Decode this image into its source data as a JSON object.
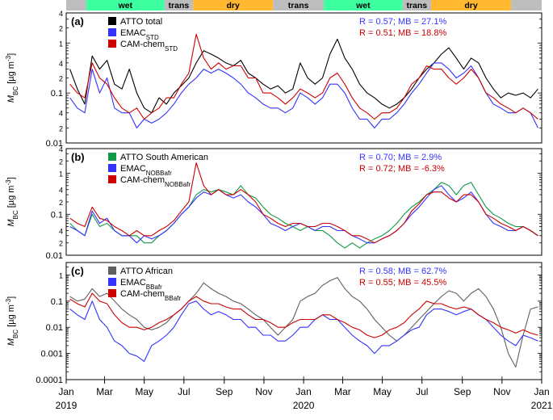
{
  "season_bar": [
    {
      "label": "",
      "color": "#bdbdbd",
      "start": "2019-01-01",
      "end": "2019-02-01"
    },
    {
      "label": "wet",
      "color": "#3dffa0",
      "start": "2019-02-01",
      "end": "2019-06-01"
    },
    {
      "label": "trans",
      "color": "#bdbdbd",
      "start": "2019-06-01",
      "end": "2019-07-15"
    },
    {
      "label": "dry",
      "color": "#ffb830",
      "start": "2019-07-15",
      "end": "2019-11-15"
    },
    {
      "label": "trans",
      "color": "#bdbdbd",
      "start": "2019-11-15",
      "end": "2020-02-01"
    },
    {
      "label": "wet",
      "color": "#3dffa0",
      "start": "2020-02-01",
      "end": "2020-06-01"
    },
    {
      "label": "trans",
      "color": "#bdbdbd",
      "start": "2020-06-01",
      "end": "2020-07-15"
    },
    {
      "label": "dry",
      "color": "#ffb830",
      "start": "2020-07-15",
      "end": "2020-11-15"
    },
    {
      "label": "",
      "color": "#bdbdbd",
      "start": "2020-11-15",
      "end": "2021-01-01"
    }
  ],
  "x_axis": {
    "ticks": [
      "Jan",
      "Mar",
      "May",
      "Jul",
      "Sep",
      "Nov",
      "Jan",
      "Mar",
      "May",
      "Jul",
      "Sep",
      "Nov",
      "Jan"
    ],
    "tick_dates": [
      "2019-01-01",
      "2019-03-01",
      "2019-05-01",
      "2019-07-01",
      "2019-09-01",
      "2019-11-01",
      "2020-01-01",
      "2020-03-01",
      "2020-05-01",
      "2020-07-01",
      "2020-09-01",
      "2020-11-01",
      "2021-01-01"
    ],
    "years": [
      {
        "label": "2019",
        "date": "2019-01-01"
      },
      {
        "label": "2020",
        "date": "2020-01-01"
      },
      {
        "label": "2021",
        "date": "2021-01-01"
      }
    ]
  },
  "chart_data": [
    {
      "type": "line",
      "panel": "(a)",
      "ylabel_main": "M",
      "ylabel_sub": "BC",
      "ylabel_unit": " [µg m",
      "ylabel_sup": "-3",
      "ylabel_close": "]",
      "ylim": [
        0.01,
        4
      ],
      "yscale": "log",
      "ytick_labels": [
        {
          "v": 0.01,
          "t": "0.01"
        },
        {
          "v": 0.02,
          "t": "2"
        },
        {
          "v": 0.04,
          "t": "4"
        },
        {
          "v": 0.1,
          "t": "0.1"
        },
        {
          "v": 0.2,
          "t": "2"
        },
        {
          "v": 0.4,
          "t": "4"
        },
        {
          "v": 1,
          "t": "1"
        },
        {
          "v": 2,
          "t": "2"
        },
        {
          "v": 4,
          "t": "4"
        }
      ],
      "legend": [
        {
          "name": "ATTO total",
          "sub": "",
          "color": "#000000"
        },
        {
          "name": "EMAC",
          "sub": "STD",
          "color": "#3333ff"
        },
        {
          "name": "CAM-chem",
          "sub": "STD",
          "color": "#cc0000"
        }
      ],
      "stats": [
        {
          "text": "R = 0.57;  MB = 27.1%",
          "color": "#3333ff"
        },
        {
          "text": "R = 0.51;  MB = 18.8%",
          "color": "#cc0000"
        }
      ],
      "series": [
        {
          "name": "ATTO total",
          "color": "#000000",
          "values": [
            0.3,
            0.12,
            0.06,
            0.55,
            0.3,
            0.45,
            0.15,
            0.12,
            0.3,
            0.1,
            0.05,
            0.04,
            0.08,
            0.06,
            0.1,
            0.14,
            0.2,
            0.4,
            0.7,
            0.6,
            0.5,
            0.4,
            0.35,
            0.45,
            0.25,
            0.2,
            0.15,
            0.12,
            0.14,
            0.1,
            0.12,
            0.4,
            0.2,
            0.15,
            0.2,
            0.6,
            1.2,
            0.5,
            0.3,
            0.15,
            0.1,
            0.08,
            0.06,
            0.05,
            0.06,
            0.08,
            0.12,
            0.2,
            0.3,
            0.4,
            0.6,
            0.8,
            0.5,
            0.3,
            0.5,
            0.4,
            0.2,
            0.12,
            0.08,
            0.1,
            0.09,
            0.1,
            0.08,
            0.12
          ]
        },
        {
          "name": "EMAC",
          "color": "#3333ff",
          "values": [
            0.08,
            0.05,
            0.04,
            0.3,
            0.1,
            0.2,
            0.05,
            0.04,
            0.04,
            0.02,
            0.03,
            0.025,
            0.03,
            0.04,
            0.06,
            0.1,
            0.15,
            0.2,
            0.3,
            0.25,
            0.3,
            0.25,
            0.2,
            0.15,
            0.1,
            0.08,
            0.06,
            0.05,
            0.05,
            0.04,
            0.05,
            0.1,
            0.08,
            0.06,
            0.08,
            0.15,
            0.15,
            0.1,
            0.05,
            0.03,
            0.03,
            0.02,
            0.03,
            0.03,
            0.04,
            0.06,
            0.1,
            0.15,
            0.25,
            0.4,
            0.4,
            0.3,
            0.2,
            0.25,
            0.35,
            0.2,
            0.1,
            0.06,
            0.05,
            0.04,
            0.04,
            0.05,
            0.04,
            0.02
          ]
        },
        {
          "name": "CAM-chem",
          "color": "#cc0000",
          "values": [
            0.15,
            0.1,
            0.08,
            0.4,
            0.2,
            0.15,
            0.08,
            0.05,
            0.04,
            0.05,
            0.03,
            0.04,
            0.05,
            0.08,
            0.08,
            0.15,
            0.25,
            1.5,
            0.5,
            0.3,
            0.4,
            0.3,
            0.35,
            0.35,
            0.2,
            0.2,
            0.1,
            0.1,
            0.08,
            0.06,
            0.08,
            0.12,
            0.1,
            0.08,
            0.1,
            0.2,
            0.25,
            0.15,
            0.08,
            0.05,
            0.04,
            0.03,
            0.04,
            0.04,
            0.05,
            0.08,
            0.15,
            0.2,
            0.35,
            0.3,
            0.3,
            0.2,
            0.15,
            0.2,
            0.3,
            0.2,
            0.1,
            0.08,
            0.06,
            0.05,
            0.04,
            0.05,
            0.04,
            0.03
          ]
        }
      ]
    },
    {
      "type": "line",
      "panel": "(b)",
      "ylabel_main": "M",
      "ylabel_sub": "BC",
      "ylabel_unit": " [µg m",
      "ylabel_sup": "-3",
      "ylabel_close": "]",
      "ylim": [
        0.01,
        4
      ],
      "yscale": "log",
      "ytick_labels": [
        {
          "v": 0.01,
          "t": "0.01"
        },
        {
          "v": 0.02,
          "t": "2"
        },
        {
          "v": 0.04,
          "t": "4"
        },
        {
          "v": 0.1,
          "t": "0.1"
        },
        {
          "v": 0.2,
          "t": "2"
        },
        {
          "v": 0.4,
          "t": "4"
        },
        {
          "v": 1,
          "t": "1"
        },
        {
          "v": 2,
          "t": "2"
        },
        {
          "v": 4,
          "t": "4"
        }
      ],
      "legend": [
        {
          "name": "ATTO South American",
          "sub": "",
          "color": "#119944"
        },
        {
          "name": "EMAC",
          "sub": "NOBBafr",
          "color": "#3333ff"
        },
        {
          "name": "CAM-chem",
          "sub": "NOBBafr",
          "color": "#cc0000"
        }
      ],
      "stats": [
        {
          "text": "R = 0.70;  MB = 2.9%",
          "color": "#3333ff"
        },
        {
          "text": "R = 0.72;  MB = -6.3%",
          "color": "#cc0000"
        }
      ],
      "series": [
        {
          "name": "ATTO South American",
          "color": "#119944",
          "values": [
            0.06,
            0.04,
            0.03,
            0.1,
            0.05,
            0.06,
            0.04,
            0.03,
            0.03,
            0.03,
            0.02,
            0.02,
            0.03,
            0.04,
            0.06,
            0.1,
            0.15,
            0.3,
            0.4,
            0.35,
            0.4,
            0.35,
            0.3,
            0.5,
            0.3,
            0.25,
            0.15,
            0.1,
            0.08,
            0.06,
            0.05,
            0.04,
            0.05,
            0.04,
            0.04,
            0.03,
            0.02,
            0.015,
            0.02,
            0.015,
            0.02,
            0.025,
            0.03,
            0.04,
            0.06,
            0.1,
            0.15,
            0.2,
            0.3,
            0.4,
            0.6,
            0.5,
            0.3,
            0.5,
            0.6,
            0.3,
            0.15,
            0.1,
            0.08,
            0.06,
            0.05,
            0.05,
            0.04,
            0.03
          ]
        },
        {
          "name": "EMAC",
          "color": "#3333ff",
          "values": [
            0.05,
            0.04,
            0.03,
            0.12,
            0.06,
            0.08,
            0.04,
            0.03,
            0.03,
            0.02,
            0.03,
            0.025,
            0.03,
            0.04,
            0.06,
            0.1,
            0.15,
            0.25,
            0.35,
            0.3,
            0.4,
            0.3,
            0.25,
            0.3,
            0.2,
            0.15,
            0.1,
            0.06,
            0.05,
            0.04,
            0.05,
            0.06,
            0.05,
            0.04,
            0.05,
            0.05,
            0.04,
            0.04,
            0.03,
            0.025,
            0.02,
            0.02,
            0.025,
            0.03,
            0.04,
            0.06,
            0.1,
            0.15,
            0.25,
            0.4,
            0.5,
            0.3,
            0.2,
            0.25,
            0.35,
            0.2,
            0.1,
            0.06,
            0.05,
            0.04,
            0.04,
            0.05,
            0.04,
            0.03
          ]
        },
        {
          "name": "CAM-chem",
          "color": "#cc0000",
          "values": [
            0.08,
            0.06,
            0.05,
            0.15,
            0.08,
            0.07,
            0.05,
            0.04,
            0.03,
            0.04,
            0.03,
            0.03,
            0.04,
            0.05,
            0.07,
            0.12,
            0.2,
            1.8,
            0.5,
            0.3,
            0.4,
            0.3,
            0.3,
            0.4,
            0.3,
            0.2,
            0.1,
            0.08,
            0.06,
            0.05,
            0.06,
            0.06,
            0.05,
            0.05,
            0.06,
            0.06,
            0.05,
            0.04,
            0.03,
            0.03,
            0.025,
            0.02,
            0.025,
            0.03,
            0.04,
            0.06,
            0.12,
            0.18,
            0.3,
            0.35,
            0.35,
            0.25,
            0.2,
            0.3,
            0.3,
            0.2,
            0.1,
            0.08,
            0.06,
            0.05,
            0.04,
            0.05,
            0.04,
            0.03
          ]
        }
      ]
    },
    {
      "type": "line",
      "panel": "(c)",
      "ylabel_main": "M",
      "ylabel_sub": "BC",
      "ylabel_unit": " [µg m",
      "ylabel_sup": "-3",
      "ylabel_close": "]",
      "ylim": [
        0.0001,
        3
      ],
      "yscale": "log",
      "ytick_labels": [
        {
          "v": 0.0001,
          "t": "0.0001"
        },
        {
          "v": 0.001,
          "t": "0.001"
        },
        {
          "v": 0.01,
          "t": "0.01"
        },
        {
          "v": 0.1,
          "t": "0.1"
        },
        {
          "v": 1,
          "t": "1"
        }
      ],
      "legend": [
        {
          "name": "ATTO African",
          "sub": "",
          "color": "#606060"
        },
        {
          "name": "EMAC",
          "sub": "BBafr",
          "color": "#3333ff"
        },
        {
          "name": "CAM-chem",
          "sub": "BBafr",
          "color": "#cc0000"
        }
      ],
      "stats": [
        {
          "text": "R = 0.58;  MB = 62.7%",
          "color": "#3333ff"
        },
        {
          "text": "R = 0.55;  MB = 45.5%",
          "color": "#cc0000"
        }
      ],
      "series": [
        {
          "name": "ATTO African",
          "color": "#606060",
          "values": [
            0.15,
            0.1,
            0.12,
            0.3,
            0.15,
            0.2,
            0.1,
            0.05,
            0.03,
            0.02,
            0.01,
            0.008,
            0.01,
            0.015,
            0.03,
            0.05,
            0.1,
            0.2,
            0.5,
            0.3,
            0.2,
            0.15,
            0.1,
            0.08,
            0.05,
            0.03,
            0.02,
            0.01,
            0.005,
            0.01,
            0.02,
            0.1,
            0.15,
            0.2,
            0.4,
            0.6,
            0.8,
            0.3,
            0.15,
            0.1,
            0.05,
            0.02,
            0.01,
            0.005,
            0.003,
            0.005,
            0.01,
            0.02,
            0.04,
            0.08,
            0.15,
            0.25,
            0.2,
            0.1,
            0.2,
            0.3,
            0.15,
            0.05,
            0.01,
            0.001,
            0.0003,
            0.005,
            0.05,
            0.06
          ]
        },
        {
          "name": "EMAC",
          "color": "#3333ff",
          "values": [
            0.05,
            0.03,
            0.02,
            0.1,
            0.02,
            0.01,
            0.003,
            0.002,
            0.001,
            0.0008,
            0.0005,
            0.002,
            0.003,
            0.005,
            0.01,
            0.03,
            0.08,
            0.1,
            0.05,
            0.03,
            0.04,
            0.03,
            0.02,
            0.02,
            0.01,
            0.01,
            0.005,
            0.005,
            0.003,
            0.003,
            0.005,
            0.01,
            0.01,
            0.02,
            0.03,
            0.02,
            0.02,
            0.01,
            0.005,
            0.003,
            0.002,
            0.001,
            0.002,
            0.002,
            0.003,
            0.005,
            0.008,
            0.01,
            0.03,
            0.05,
            0.05,
            0.04,
            0.03,
            0.04,
            0.05,
            0.03,
            0.02,
            0.01,
            0.005,
            0.003,
            0.002,
            0.005,
            0.004,
            0.003
          ]
        },
        {
          "name": "CAM-chem",
          "color": "#cc0000",
          "values": [
            0.12,
            0.08,
            0.06,
            0.2,
            0.1,
            0.08,
            0.03,
            0.015,
            0.01,
            0.01,
            0.008,
            0.01,
            0.015,
            0.02,
            0.03,
            0.05,
            0.1,
            0.15,
            0.1,
            0.08,
            0.08,
            0.06,
            0.05,
            0.05,
            0.03,
            0.02,
            0.02,
            0.015,
            0.01,
            0.01,
            0.015,
            0.02,
            0.02,
            0.02,
            0.03,
            0.03,
            0.02,
            0.015,
            0.01,
            0.008,
            0.005,
            0.004,
            0.005,
            0.008,
            0.01,
            0.015,
            0.03,
            0.05,
            0.1,
            0.08,
            0.08,
            0.06,
            0.05,
            0.06,
            0.05,
            0.03,
            0.02,
            0.015,
            0.01,
            0.008,
            0.006,
            0.008,
            0.006,
            0.005
          ]
        }
      ]
    }
  ]
}
